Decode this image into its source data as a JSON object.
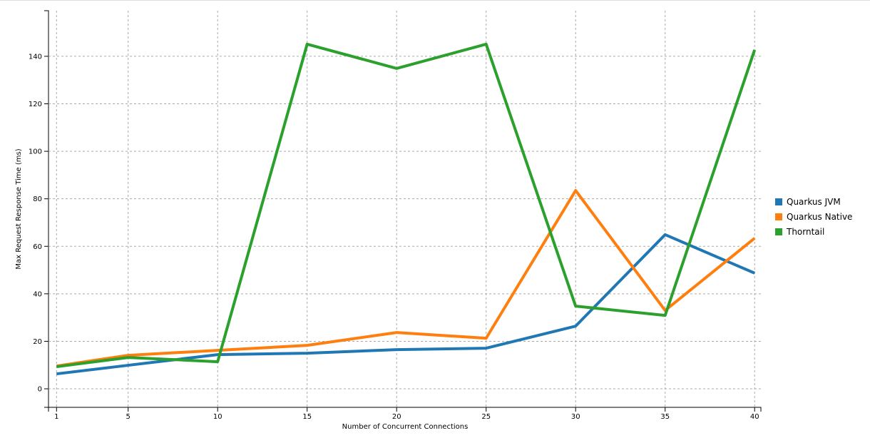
{
  "chart_data": {
    "type": "line",
    "x_label": "Number of Concurrent Connections",
    "y_label": "Max Request Response Time (ms)",
    "x": [
      1,
      5,
      10,
      15,
      20,
      25,
      30,
      35,
      40
    ],
    "series": [
      {
        "name": "Quarkus JVM",
        "color": "#1f77b4",
        "values": [
          6.3,
          9.9,
          14.4,
          15.0,
          16.5,
          17.1,
          26.4,
          64.9,
          48.7
        ]
      },
      {
        "name": "Quarkus Native",
        "color": "#ff7f0e",
        "values": [
          9.6,
          14.1,
          16.2,
          18.3,
          23.7,
          21.3,
          83.5,
          33.0,
          63.4
        ]
      },
      {
        "name": "Thorntail",
        "color": "#2ca02c",
        "values": [
          9.3,
          13.2,
          11.4,
          145.1,
          134.9,
          145.1,
          34.8,
          30.9,
          142.7
        ]
      }
    ],
    "xlim": [
      0.55,
      40.35
    ],
    "xticks": [
      1,
      5,
      10,
      15,
      20,
      25,
      30,
      35,
      40
    ],
    "ylim": [
      -7.8,
      159.2
    ],
    "yticks": [
      0,
      20,
      40,
      60,
      80,
      100,
      120,
      140
    ],
    "grid": true,
    "legend": "right"
  }
}
